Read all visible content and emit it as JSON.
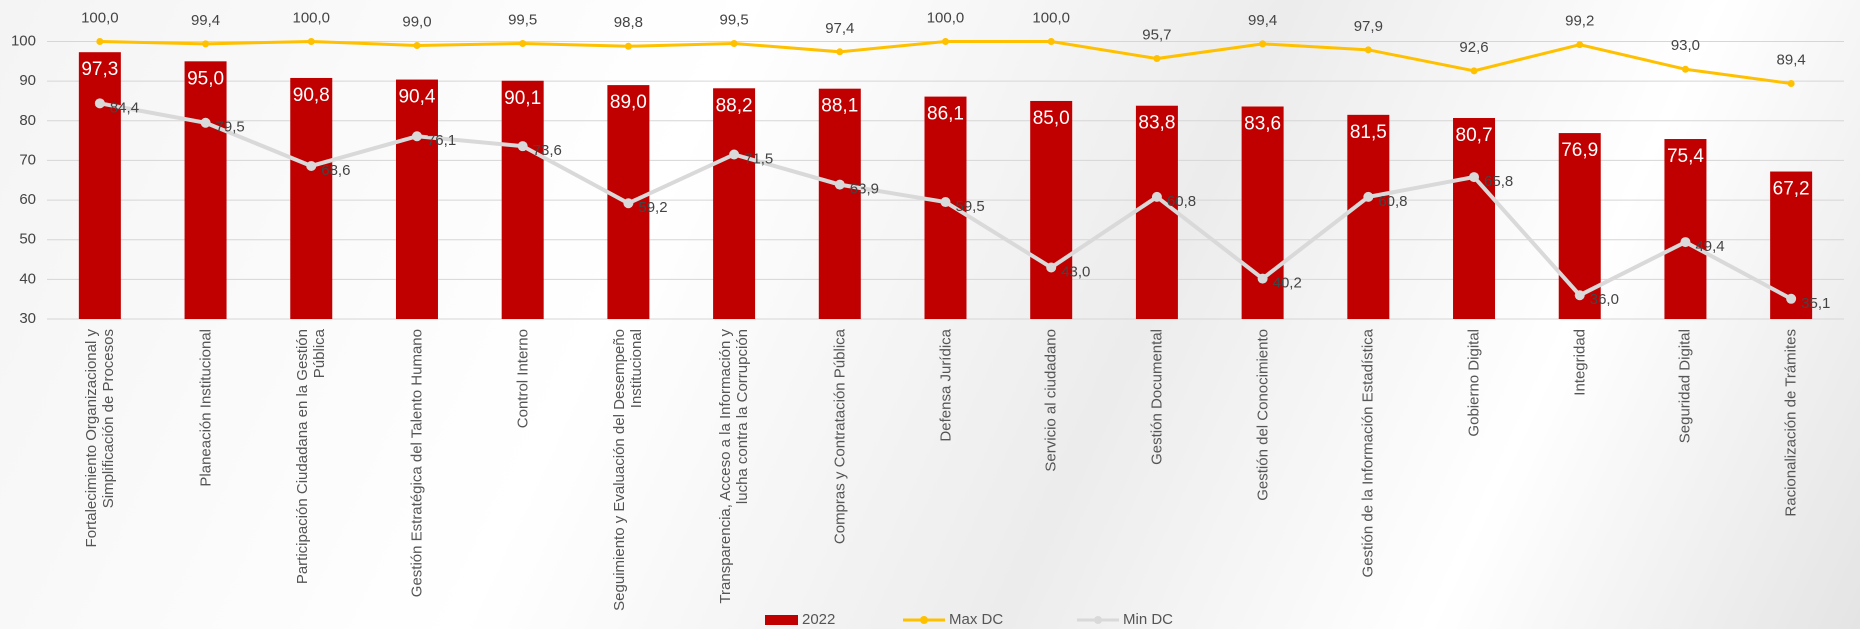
{
  "chart_data": {
    "type": "bar",
    "categories": [
      "Fortalecimiento Organizacional y Simplificación de Procesos",
      "Planeación Institucional",
      "Participación Ciudadana en la Gestión Pública",
      "Gestión Estratégica del Talento Humano",
      "Control Interno",
      "Seguimiento y Evaluación del Desempeño Institucional",
      "Transparencia, Acceso a la Información y lucha contra la Corrupción",
      "Compras y Contratación Pública",
      "Defensa Jurídica",
      "Servicio al ciudadano",
      "Gestión Documental",
      "Gestión del Conocimiento",
      "Gestión de la Información Estadística",
      "Gobierno Digital",
      "Integridad",
      "Seguridad Digital",
      "Racionalización de Trámites"
    ],
    "series": [
      {
        "name": "2022",
        "type": "bar",
        "color": "#c00000",
        "values": [
          97.3,
          95.0,
          90.8,
          90.4,
          90.1,
          89.0,
          88.2,
          88.1,
          86.1,
          85.0,
          83.8,
          83.6,
          81.5,
          80.7,
          76.9,
          75.4,
          67.2
        ],
        "value_labels": [
          "97,3",
          "95,0",
          "90,8",
          "90,4",
          "90,1",
          "89,0",
          "88,2",
          "88,1",
          "86,1",
          "85,0",
          "83,8",
          "83,6",
          "81,5",
          "80,7",
          "76,9",
          "75,4",
          "67,2"
        ]
      },
      {
        "name": "Max DC",
        "type": "line",
        "color": "#ffc000",
        "values": [
          100.0,
          99.4,
          100.0,
          99.0,
          99.5,
          98.8,
          99.5,
          97.4,
          100.0,
          100.0,
          95.7,
          99.4,
          97.9,
          92.6,
          99.2,
          93.0,
          89.4
        ],
        "value_labels": [
          "100,0",
          "99,4",
          "100,0",
          "99,0",
          "99,5",
          "98,8",
          "99,5",
          "97,4",
          "100,0",
          "100,0",
          "95,7",
          "99,4",
          "97,9",
          "92,6",
          "99,2",
          "93,0",
          "89,4"
        ]
      },
      {
        "name": "Min DC",
        "type": "line",
        "color": "#d9d9d9",
        "values": [
          84.4,
          79.5,
          68.6,
          76.1,
          73.6,
          59.2,
          71.5,
          63.9,
          59.5,
          43.0,
          60.8,
          40.2,
          60.8,
          65.8,
          36.0,
          49.4,
          35.1
        ],
        "value_labels": [
          "84,4",
          "79,5",
          "68,6",
          "76,1",
          "73,6",
          "59,2",
          "71,5",
          "63,9",
          "59,5",
          "43,0",
          "60,8",
          "40,2",
          "60,8",
          "65,8",
          "36,0",
          "49,4",
          "35,1"
        ]
      }
    ],
    "ylim": [
      30,
      100
    ],
    "yticks": [
      30,
      40,
      50,
      60,
      70,
      80,
      90,
      100
    ],
    "grid": true,
    "legend": "bottom"
  }
}
